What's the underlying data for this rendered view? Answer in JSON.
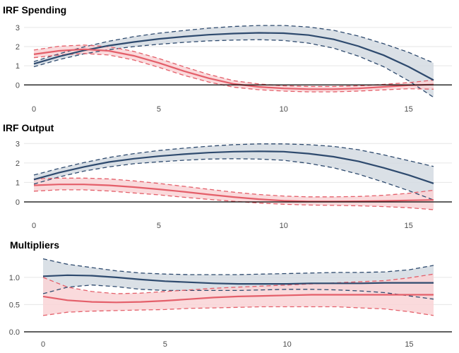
{
  "colors": {
    "series_a": "#2e4a6e",
    "series_a_fill": "#d4dae2",
    "series_b": "#e45f6a",
    "series_b_fill": "#f9d3d6",
    "grid": "#e6e6e6",
    "zero_line": "#000000"
  },
  "chart_data": [
    {
      "type": "line",
      "title": "IRF Spending",
      "xlabel": "",
      "ylabel": "",
      "xlim": [
        0,
        16
      ],
      "ylim": [
        -0.8,
        3.4
      ],
      "x_ticks": [
        0,
        5,
        10,
        15
      ],
      "y_ticks": [
        0,
        1,
        2,
        3
      ],
      "zero_line": true,
      "grid": true,
      "x": [
        0,
        1,
        2,
        3,
        4,
        5,
        6,
        7,
        8,
        9,
        10,
        11,
        12,
        13,
        14,
        15,
        16
      ],
      "series": [
        {
          "color_key": "series_a",
          "values": [
            1.1,
            1.48,
            1.8,
            2.05,
            2.24,
            2.4,
            2.52,
            2.62,
            2.68,
            2.72,
            2.7,
            2.6,
            2.38,
            2.02,
            1.55,
            0.95,
            0.25
          ],
          "upper": [
            1.22,
            1.62,
            1.98,
            2.28,
            2.52,
            2.7,
            2.84,
            2.96,
            3.05,
            3.1,
            3.1,
            3.02,
            2.85,
            2.55,
            2.15,
            1.7,
            1.15
          ],
          "lower": [
            0.95,
            1.32,
            1.62,
            1.84,
            2.0,
            2.12,
            2.22,
            2.3,
            2.34,
            2.36,
            2.32,
            2.18,
            1.92,
            1.5,
            0.95,
            0.22,
            -0.65
          ]
        },
        {
          "color_key": "series_b",
          "values": [
            1.6,
            1.78,
            1.86,
            1.78,
            1.52,
            1.15,
            0.72,
            0.35,
            0.05,
            -0.1,
            -0.18,
            -0.22,
            -0.22,
            -0.18,
            -0.1,
            -0.02,
            0.02
          ],
          "upper": [
            1.82,
            2.02,
            2.08,
            2.0,
            1.75,
            1.38,
            0.95,
            0.55,
            0.22,
            0.05,
            -0.05,
            -0.08,
            -0.08,
            -0.05,
            0.03,
            0.12,
            0.25
          ],
          "lower": [
            1.42,
            1.56,
            1.64,
            1.56,
            1.3,
            0.92,
            0.5,
            0.15,
            -0.12,
            -0.25,
            -0.32,
            -0.36,
            -0.36,
            -0.32,
            -0.26,
            -0.2,
            -0.22
          ]
        }
      ]
    },
    {
      "type": "line",
      "title": "IRF Output",
      "xlabel": "",
      "ylabel": "",
      "xlim": [
        0,
        16
      ],
      "ylim": [
        -0.4,
        3.3
      ],
      "x_ticks": [
        0,
        5,
        10,
        15
      ],
      "y_ticks": [
        0,
        1,
        2,
        3
      ],
      "zero_line": true,
      "grid": true,
      "x": [
        0,
        1,
        2,
        3,
        4,
        5,
        6,
        7,
        8,
        9,
        10,
        11,
        12,
        13,
        14,
        15,
        16
      ],
      "series": [
        {
          "color_key": "series_a",
          "values": [
            1.15,
            1.5,
            1.8,
            2.05,
            2.22,
            2.35,
            2.45,
            2.53,
            2.58,
            2.6,
            2.58,
            2.48,
            2.32,
            2.08,
            1.75,
            1.38,
            0.95
          ],
          "upper": [
            1.38,
            1.72,
            2.02,
            2.28,
            2.48,
            2.64,
            2.76,
            2.86,
            2.94,
            2.98,
            2.98,
            2.94,
            2.85,
            2.68,
            2.42,
            2.12,
            1.82
          ],
          "lower": [
            0.92,
            1.28,
            1.58,
            1.8,
            1.96,
            2.06,
            2.14,
            2.2,
            2.22,
            2.2,
            2.14,
            1.98,
            1.75,
            1.42,
            1.02,
            0.58,
            0.1
          ]
        },
        {
          "color_key": "series_b",
          "values": [
            0.85,
            0.9,
            0.9,
            0.85,
            0.76,
            0.65,
            0.52,
            0.38,
            0.25,
            0.14,
            0.06,
            0.02,
            0.02,
            0.03,
            0.05,
            0.08,
            0.1
          ],
          "upper": [
            1.18,
            1.22,
            1.22,
            1.18,
            1.08,
            0.95,
            0.8,
            0.65,
            0.5,
            0.38,
            0.3,
            0.26,
            0.26,
            0.28,
            0.34,
            0.44,
            0.6
          ],
          "lower": [
            0.55,
            0.62,
            0.62,
            0.56,
            0.46,
            0.36,
            0.24,
            0.13,
            0.03,
            -0.06,
            -0.12,
            -0.16,
            -0.18,
            -0.2,
            -0.24,
            -0.3,
            -0.4
          ]
        }
      ]
    },
    {
      "type": "line",
      "title": "Multipliers",
      "xlabel": "",
      "ylabel": "",
      "xlim": [
        0,
        16
      ],
      "ylim": [
        0.0,
        1.4
      ],
      "x_ticks": [
        0,
        5,
        10,
        15
      ],
      "y_ticks": [
        0.0,
        0.5,
        1.0
      ],
      "y_tick_labels": [
        "0.0",
        "0.5",
        "1.0"
      ],
      "zero_line": true,
      "grid": true,
      "x": [
        0,
        1,
        2,
        3,
        4,
        5,
        6,
        7,
        8,
        9,
        10,
        11,
        12,
        13,
        14,
        15,
        16
      ],
      "series": [
        {
          "color_key": "series_a",
          "values": [
            1.02,
            1.04,
            1.03,
            1.0,
            0.96,
            0.93,
            0.91,
            0.89,
            0.88,
            0.88,
            0.88,
            0.89,
            0.89,
            0.89,
            0.9,
            0.9,
            0.9
          ],
          "upper": [
            1.34,
            1.24,
            1.18,
            1.12,
            1.08,
            1.06,
            1.05,
            1.05,
            1.05,
            1.06,
            1.07,
            1.08,
            1.09,
            1.09,
            1.1,
            1.14,
            1.22
          ],
          "lower": [
            0.7,
            0.82,
            0.86,
            0.83,
            0.78,
            0.76,
            0.76,
            0.76,
            0.76,
            0.77,
            0.78,
            0.78,
            0.77,
            0.75,
            0.72,
            0.66,
            0.6
          ]
        },
        {
          "color_key": "series_b",
          "values": [
            0.65,
            0.58,
            0.55,
            0.54,
            0.55,
            0.57,
            0.6,
            0.63,
            0.65,
            0.66,
            0.67,
            0.68,
            0.68,
            0.68,
            0.68,
            0.68,
            0.68
          ],
          "upper": [
            1.0,
            0.82,
            0.74,
            0.7,
            0.71,
            0.74,
            0.77,
            0.8,
            0.82,
            0.84,
            0.86,
            0.88,
            0.9,
            0.92,
            0.94,
            0.99,
            1.06
          ],
          "lower": [
            0.3,
            0.36,
            0.38,
            0.39,
            0.4,
            0.41,
            0.43,
            0.44,
            0.45,
            0.46,
            0.46,
            0.46,
            0.46,
            0.44,
            0.42,
            0.37,
            0.3
          ]
        }
      ]
    }
  ]
}
